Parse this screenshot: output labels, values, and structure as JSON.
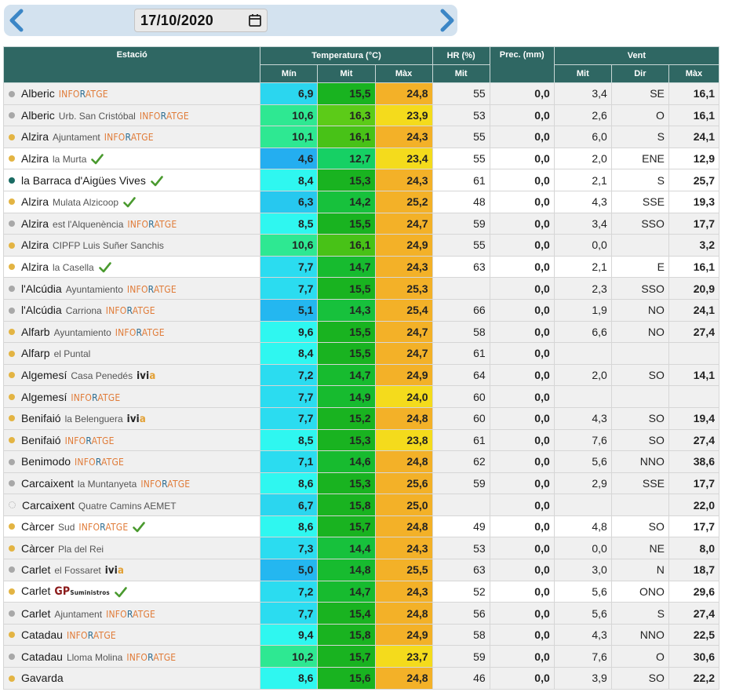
{
  "date": {
    "value": "17/10/2020",
    "prev_icon": "chevron-left-icon",
    "next_icon": "chevron-right-icon",
    "calendar_icon": "calendar-icon"
  },
  "table": {
    "headers": {
      "station": "Estació",
      "temperature": "Temperatura (°C)",
      "hr": "HR (%)",
      "prec": "Prec. (mm)",
      "wind": "Vent"
    },
    "subheaders": {
      "tmin": "Mín",
      "tmit": "Mit",
      "tmax": "Màx",
      "hrmit": "Mit",
      "wmit": "Mit",
      "wdir": "Dir",
      "wmax": "Màx"
    },
    "colors": {
      "header_bg": "#2f6763",
      "dot_gray": "#a8a8a8",
      "dot_gold": "#e3b443",
      "dot_teal": "#1a6b63"
    },
    "rows": [
      {
        "name": "Alberic",
        "sub": "",
        "brand": "INFORATGE",
        "check": false,
        "dot": "gray",
        "min": "6,9",
        "mit": "15,5",
        "max": "24,8",
        "hr": "55",
        "prec": "0,0",
        "wmit": "3,4",
        "dir": "SE",
        "wmax": "16,1",
        "cmin": "#2bd6ef",
        "cmit": "#19b320",
        "cmax": "#f3b128"
      },
      {
        "name": "Alberic",
        "sub": "Urb. San Cristóbal",
        "brand": "INFORATGE",
        "check": false,
        "dot": "gray",
        "min": "10,6",
        "mit": "16,3",
        "max": "23,9",
        "hr": "53",
        "prec": "0,0",
        "wmit": "2,6",
        "dir": "O",
        "wmax": "16,1",
        "cmin": "#2ee892",
        "cmit": "#5ccb18",
        "cmax": "#f4db1c"
      },
      {
        "name": "Alzira",
        "sub": "Ajuntament",
        "brand": "INFORATGE",
        "check": false,
        "dot": "gold",
        "min": "10,1",
        "mit": "16,1",
        "max": "24,3",
        "hr": "55",
        "prec": "0,0",
        "wmit": "6,0",
        "dir": "S",
        "wmax": "24,1",
        "cmin": "#2ee892",
        "cmit": "#48c217",
        "cmax": "#f3b128"
      },
      {
        "name": "Alzira",
        "sub": "la Murta",
        "brand": "",
        "check": true,
        "dot": "gold",
        "min": "4,6",
        "mit": "12,7",
        "max": "23,4",
        "hr": "55",
        "prec": "0,0",
        "wmit": "2,0",
        "dir": "ENE",
        "wmax": "12,9",
        "cmin": "#24aef0",
        "cmit": "#16d064",
        "cmax": "#f4db1c"
      },
      {
        "name": "la Barraca d'Aigües Vives",
        "sub": "",
        "brand": "",
        "check": true,
        "dot": "teal",
        "min": "8,4",
        "mit": "15,3",
        "max": "24,3",
        "hr": "61",
        "prec": "0,0",
        "wmit": "2,1",
        "dir": "S",
        "wmax": "25,7",
        "cmin": "#2ff7f0",
        "cmit": "#19b320",
        "cmax": "#f3b128"
      },
      {
        "name": "Alzira",
        "sub": "Mulata Alzicoop",
        "brand": "",
        "check": true,
        "dot": "gold",
        "min": "6,3",
        "mit": "14,2",
        "max": "25,2",
        "hr": "48",
        "prec": "0,0",
        "wmit": "4,3",
        "dir": "SSE",
        "wmax": "19,3",
        "cmin": "#27c8ef",
        "cmit": "#17c13c",
        "cmax": "#f3b128"
      },
      {
        "name": "Alzira",
        "sub": "est l'Alquenència",
        "brand": "INFORATGE",
        "check": false,
        "dot": "gray",
        "min": "8,5",
        "mit": "15,5",
        "max": "24,7",
        "hr": "59",
        "prec": "0,0",
        "wmit": "3,4",
        "dir": "SSO",
        "wmax": "17,7",
        "cmin": "#2ff7f0",
        "cmit": "#19b320",
        "cmax": "#f3b128"
      },
      {
        "name": "Alzira",
        "sub": "CIPFP Luis Suñer Sanchis",
        "brand": "",
        "check": false,
        "dot": "gold",
        "min": "10,6",
        "mit": "16,1",
        "max": "24,9",
        "hr": "55",
        "prec": "0,0",
        "wmit": "0,0",
        "dir": "",
        "wmax": "3,2",
        "cmin": "#2ee892",
        "cmit": "#48c217",
        "cmax": "#f3b128"
      },
      {
        "name": "Alzira",
        "sub": "la Casella",
        "brand": "",
        "check": true,
        "dot": "gold",
        "min": "7,7",
        "mit": "14,7",
        "max": "24,3",
        "hr": "63",
        "prec": "0,0",
        "wmit": "2,1",
        "dir": "E",
        "wmax": "16,1",
        "cmin": "#2bdcf0",
        "cmit": "#17bb2f",
        "cmax": "#f3b128"
      },
      {
        "name": "l'Alcúdia",
        "sub": "Ayuntamiento",
        "brand": "INFORATGE",
        "check": false,
        "dot": "gray",
        "min": "7,7",
        "mit": "15,5",
        "max": "25,3",
        "hr": "",
        "prec": "0,0",
        "wmit": "2,3",
        "dir": "SSO",
        "wmax": "20,9",
        "cmin": "#2bdcf0",
        "cmit": "#19b320",
        "cmax": "#f3b128"
      },
      {
        "name": "l'Alcúdia",
        "sub": "Carriona",
        "brand": "INFORATGE",
        "check": false,
        "dot": "gray",
        "min": "5,1",
        "mit": "14,3",
        "max": "25,4",
        "hr": "66",
        "prec": "0,0",
        "wmit": "1,9",
        "dir": "NO",
        "wmax": "24,1",
        "cmin": "#24b7f0",
        "cmit": "#17c13c",
        "cmax": "#f3b128"
      },
      {
        "name": "Alfarb",
        "sub": "Ayuntamiento",
        "brand": "INFORATGE",
        "check": false,
        "dot": "gold",
        "min": "9,6",
        "mit": "15,5",
        "max": "24,7",
        "hr": "58",
        "prec": "0,0",
        "wmit": "6,6",
        "dir": "NO",
        "wmax": "27,4",
        "cmin": "#2ff7f0",
        "cmit": "#19b320",
        "cmax": "#f3b128"
      },
      {
        "name": "Alfarp",
        "sub": "el Puntal",
        "brand": "",
        "check": false,
        "dot": "gold",
        "min": "8,4",
        "mit": "15,5",
        "max": "24,7",
        "hr": "61",
        "prec": "0,0",
        "wmit": "",
        "dir": "",
        "wmax": "",
        "cmin": "#2ff7f0",
        "cmit": "#19b320",
        "cmax": "#f3b128"
      },
      {
        "name": "Algemesí",
        "sub": "Casa Penedés",
        "brand": "ivia",
        "check": false,
        "dot": "gold",
        "min": "7,2",
        "mit": "14,7",
        "max": "24,9",
        "hr": "64",
        "prec": "0,0",
        "wmit": "2,0",
        "dir": "SO",
        "wmax": "14,1",
        "cmin": "#2bdcf0",
        "cmit": "#17bb2f",
        "cmax": "#f3b128"
      },
      {
        "name": "Algemesí",
        "sub": "",
        "brand": "INFORATGE",
        "check": false,
        "dot": "gold",
        "min": "7,7",
        "mit": "14,9",
        "max": "24,0",
        "hr": "60",
        "prec": "0,0",
        "wmit": "",
        "dir": "",
        "wmax": "",
        "cmin": "#2bdcf0",
        "cmit": "#17bb2f",
        "cmax": "#f4db1c"
      },
      {
        "name": "Benifaió",
        "sub": "la Belenguera",
        "brand": "ivia",
        "check": false,
        "dot": "gold",
        "min": "7,7",
        "mit": "15,2",
        "max": "24,8",
        "hr": "60",
        "prec": "0,0",
        "wmit": "4,3",
        "dir": "SO",
        "wmax": "19,4",
        "cmin": "#2bdcf0",
        "cmit": "#19b320",
        "cmax": "#f3b128"
      },
      {
        "name": "Benifaió",
        "sub": "",
        "brand": "INFORATGE",
        "check": false,
        "dot": "gold",
        "min": "8,5",
        "mit": "15,3",
        "max": "23,8",
        "hr": "61",
        "prec": "0,0",
        "wmit": "7,6",
        "dir": "SO",
        "wmax": "27,4",
        "cmin": "#2ff7f0",
        "cmit": "#19b320",
        "cmax": "#f4db1c"
      },
      {
        "name": "Benimodo",
        "sub": "",
        "brand": "INFORATGE",
        "check": false,
        "dot": "gray",
        "min": "7,1",
        "mit": "14,6",
        "max": "24,8",
        "hr": "62",
        "prec": "0,0",
        "wmit": "5,6",
        "dir": "NNO",
        "wmax": "38,6",
        "cmin": "#2bdcf0",
        "cmit": "#17bb2f",
        "cmax": "#f3b128"
      },
      {
        "name": "Carcaixent",
        "sub": "la Muntanyeta",
        "brand": "INFORATGE",
        "check": false,
        "dot": "gray",
        "min": "8,6",
        "mit": "15,3",
        "max": "25,6",
        "hr": "59",
        "prec": "0,0",
        "wmit": "2,9",
        "dir": "SSE",
        "wmax": "17,7",
        "cmin": "#2ff7f0",
        "cmit": "#19b320",
        "cmax": "#f3b128"
      },
      {
        "name": "Carcaixent",
        "sub": "Quatre Camins AEMET",
        "brand": "",
        "check": false,
        "dot": "empty",
        "min": "6,7",
        "mit": "15,8",
        "max": "25,0",
        "hr": "",
        "prec": "0,0",
        "wmit": "",
        "dir": "",
        "wmax": "22,0",
        "cmin": "#2bd6ef",
        "cmit": "#19b320",
        "cmax": "#f3b128"
      },
      {
        "name": "Càrcer",
        "sub": "Sud",
        "brand": "INFORATGE",
        "check": true,
        "dot": "gold",
        "min": "8,6",
        "mit": "15,7",
        "max": "24,8",
        "hr": "49",
        "prec": "0,0",
        "wmit": "4,8",
        "dir": "SO",
        "wmax": "17,7",
        "cmin": "#2ff7f0",
        "cmit": "#19b320",
        "cmax": "#f3b128"
      },
      {
        "name": "Càrcer",
        "sub": "Pla del Rei",
        "brand": "",
        "check": false,
        "dot": "gold",
        "min": "7,3",
        "mit": "14,4",
        "max": "24,3",
        "hr": "53",
        "prec": "0,0",
        "wmit": "0,0",
        "dir": "NE",
        "wmax": "8,0",
        "cmin": "#2bdcf0",
        "cmit": "#17c13c",
        "cmax": "#f3b128"
      },
      {
        "name": "Carlet",
        "sub": "el Fossaret",
        "brand": "ivia",
        "check": false,
        "dot": "gray",
        "min": "5,0",
        "mit": "14,8",
        "max": "25,5",
        "hr": "63",
        "prec": "0,0",
        "wmit": "3,0",
        "dir": "N",
        "wmax": "18,7",
        "cmin": "#24b7f0",
        "cmit": "#17bb2f",
        "cmax": "#f3b128"
      },
      {
        "name": "Carlet",
        "sub": "",
        "brand": "GP",
        "check": true,
        "dot": "gold",
        "min": "7,2",
        "mit": "14,7",
        "max": "24,3",
        "hr": "52",
        "prec": "0,0",
        "wmit": "5,6",
        "dir": "ONO",
        "wmax": "29,6",
        "cmin": "#2bdcf0",
        "cmit": "#17bb2f",
        "cmax": "#f3b128"
      },
      {
        "name": "Carlet",
        "sub": "Ajuntament",
        "brand": "INFORATGE",
        "check": false,
        "dot": "gray",
        "min": "7,7",
        "mit": "15,4",
        "max": "24,8",
        "hr": "56",
        "prec": "0,0",
        "wmit": "5,6",
        "dir": "S",
        "wmax": "27,4",
        "cmin": "#2bdcf0",
        "cmit": "#19b320",
        "cmax": "#f3b128"
      },
      {
        "name": "Catadau",
        "sub": "",
        "brand": "INFORATGE",
        "check": false,
        "dot": "gold",
        "min": "9,4",
        "mit": "15,8",
        "max": "24,9",
        "hr": "58",
        "prec": "0,0",
        "wmit": "4,3",
        "dir": "NNO",
        "wmax": "22,5",
        "cmin": "#2ff7f0",
        "cmit": "#19b320",
        "cmax": "#f3b128"
      },
      {
        "name": "Catadau",
        "sub": "Lloma Molina",
        "brand": "INFORATGE",
        "check": false,
        "dot": "gray",
        "min": "10,2",
        "mit": "15,7",
        "max": "23,7",
        "hr": "59",
        "prec": "0,0",
        "wmit": "7,6",
        "dir": "O",
        "wmax": "30,6",
        "cmin": "#2ee892",
        "cmit": "#19b320",
        "cmax": "#f4db1c"
      },
      {
        "name": "Gavarda",
        "sub": "",
        "brand": "",
        "check": false,
        "dot": "gold",
        "min": "8,6",
        "mit": "15,6",
        "max": "24,8",
        "hr": "46",
        "prec": "0,0",
        "wmit": "3,9",
        "dir": "SO",
        "wmax": "22,2",
        "cmin": "#2ff7f0",
        "cmit": "#19b320",
        "cmax": "#f3b128"
      }
    ]
  }
}
